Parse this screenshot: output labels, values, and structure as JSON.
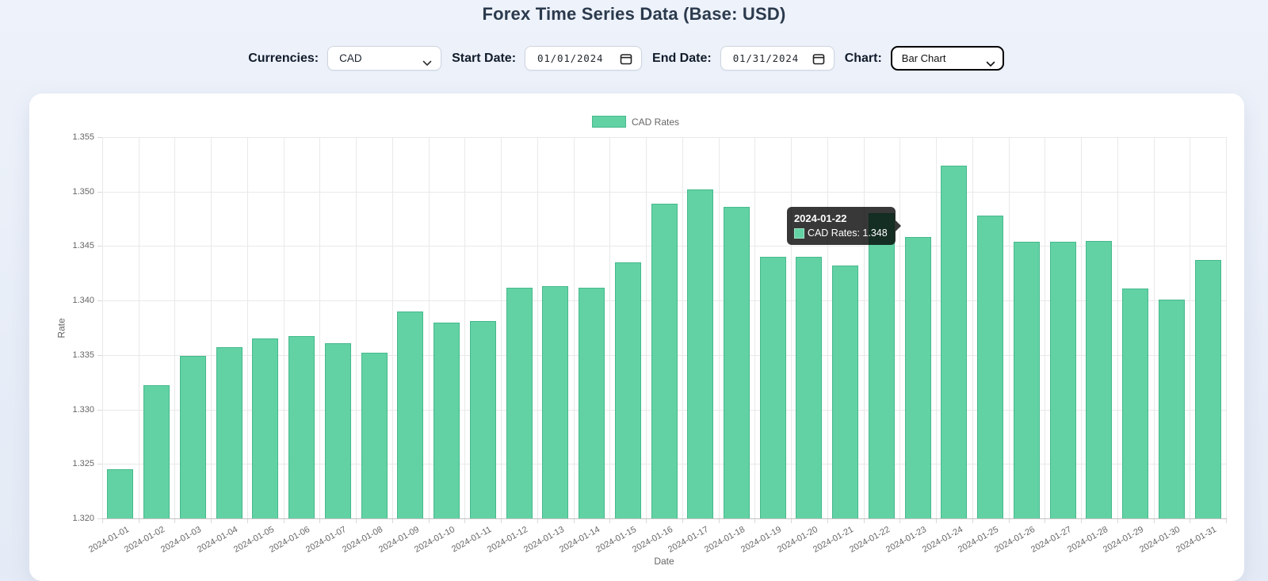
{
  "header": {
    "title": "Forex Time Series Data (Base: USD)"
  },
  "controls": {
    "currencies_label": "Currencies:",
    "currency_value": "CAD",
    "start_date_label": "Start Date:",
    "start_date_value": "01/01/2024",
    "end_date_label": "End Date:",
    "end_date_value": "01/31/2024",
    "chart_label": "Chart:",
    "chart_type_value": "Bar Chart"
  },
  "tooltip": {
    "title": "2024-01-22",
    "body": "CAD Rates: 1.348",
    "anchor_index": 21
  },
  "chart_data": {
    "type": "bar",
    "legend": "CAD Rates",
    "xlabel": "Date",
    "ylabel": "Rate",
    "ylim": [
      1.32,
      1.355
    ],
    "y_ticks": [
      "1.355",
      "1.350",
      "1.345",
      "1.340",
      "1.335",
      "1.330",
      "1.325",
      "1.320"
    ],
    "grid": "on",
    "legend_position": "top-center",
    "categories": [
      "2024-01-01",
      "2024-01-02",
      "2024-01-03",
      "2024-01-04",
      "2024-01-05",
      "2024-01-06",
      "2024-01-07",
      "2024-01-08",
      "2024-01-09",
      "2024-01-10",
      "2024-01-11",
      "2024-01-12",
      "2024-01-13",
      "2024-01-14",
      "2024-01-15",
      "2024-01-16",
      "2024-01-17",
      "2024-01-18",
      "2024-01-19",
      "2024-01-20",
      "2024-01-21",
      "2024-01-22",
      "2024-01-23",
      "2024-01-24",
      "2024-01-25",
      "2024-01-26",
      "2024-01-27",
      "2024-01-28",
      "2024-01-29",
      "2024-01-30",
      "2024-01-31"
    ],
    "values": [
      1.3245,
      1.3322,
      1.3349,
      1.3357,
      1.3365,
      1.3367,
      1.3361,
      1.3352,
      1.339,
      1.338,
      1.3381,
      1.3412,
      1.3413,
      1.3412,
      1.3435,
      1.3489,
      1.3502,
      1.3486,
      1.344,
      1.344,
      1.3432,
      1.348,
      1.3458,
      1.3524,
      1.3478,
      1.3454,
      1.3454,
      1.3455,
      1.3411,
      1.3401,
      1.3437
    ],
    "colors": {
      "bar_fill": "#62d2a4",
      "bar_border": "#46b98c",
      "grid_line": "#e9e9e9",
      "tick_text": "#666666",
      "accent_title": "#2b3a4d"
    }
  }
}
